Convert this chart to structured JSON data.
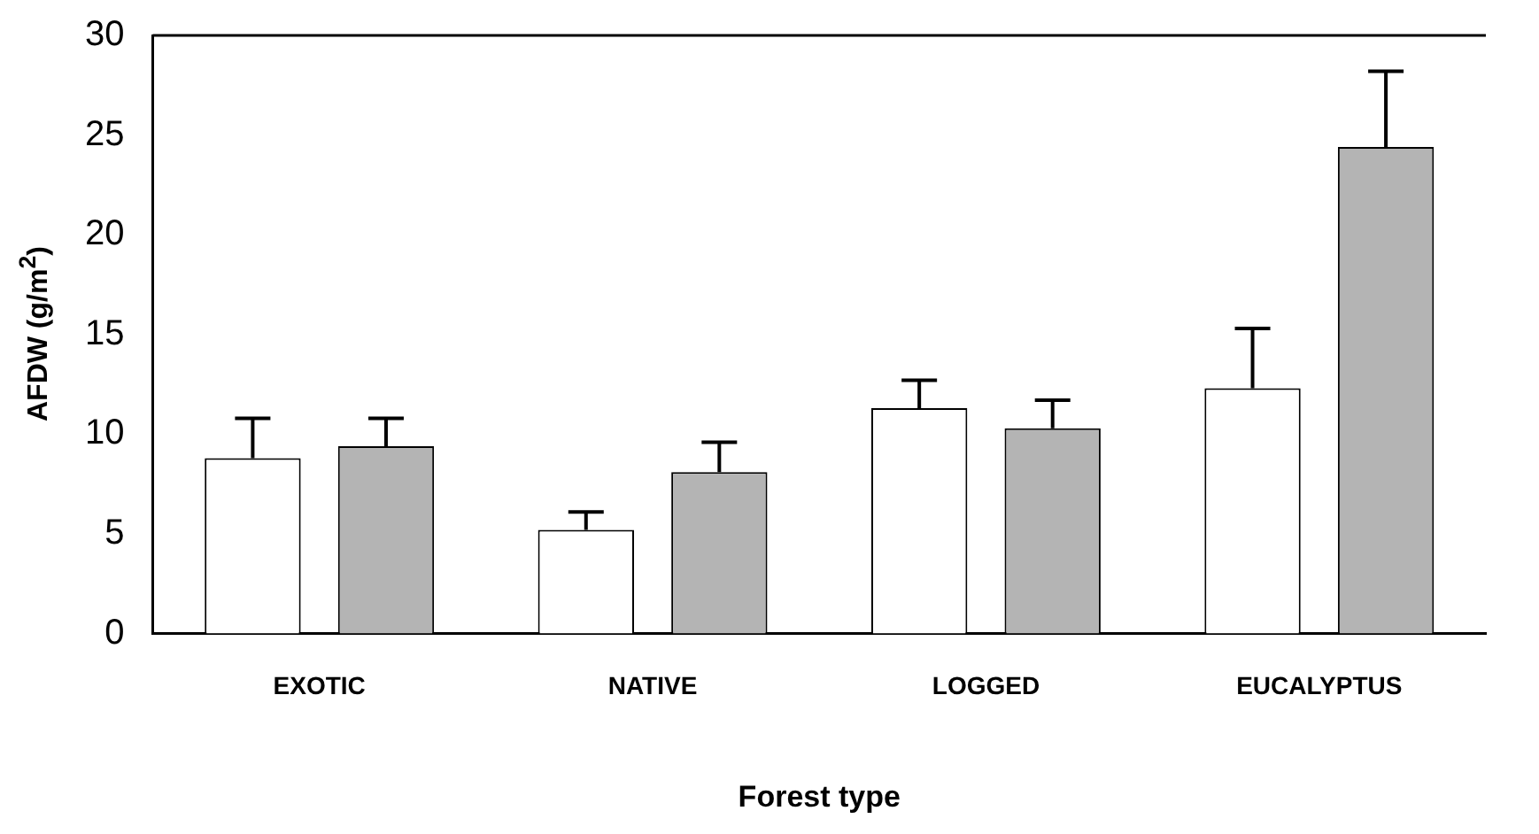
{
  "chart_data": {
    "type": "bar",
    "xlabel": "Forest type",
    "ylabel": "AFDW (g/m$^{2}$)",
    "categories": [
      "EXOTIC",
      "NATIVE",
      "LOGGED",
      "EUCALYPTUS"
    ],
    "series": [
      {
        "color": "#ffffff",
        "values": [
          8.8,
          5.2,
          11.3,
          12.3
        ],
        "errors": [
          [
            8.8,
            10.8
          ],
          [
            5.2,
            6.1
          ],
          [
            11.3,
            12.7
          ],
          [
            12.3,
            15.3
          ]
        ]
      },
      {
        "color": "#b4b4b4",
        "values": [
          9.4,
          8.1,
          10.3,
          24.4
        ],
        "errors": [
          [
            9.4,
            10.8
          ],
          [
            8.1,
            9.6
          ],
          [
            10.3,
            11.7
          ],
          [
            24.4,
            28.2
          ]
        ]
      }
    ],
    "ylim": [
      0,
      30
    ],
    "yticks": [
      0,
      5,
      10,
      15,
      20,
      25,
      30
    ],
    "grid": false,
    "legend": false
  }
}
